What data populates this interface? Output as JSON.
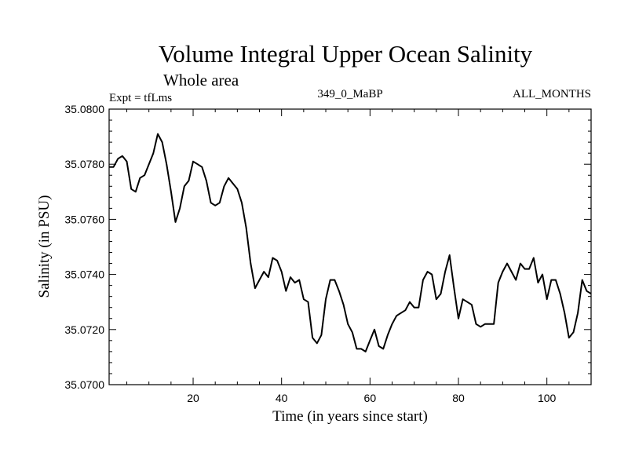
{
  "chart_data": {
    "type": "line",
    "title": "Volume Integral Upper Ocean Salinity",
    "subtitle": "Whole area",
    "experiment_label": "Expt = tfLms",
    "run_id": "349_0_MaBP",
    "months_label": "ALL_MONTHS",
    "xlabel": "Time (in years since start)",
    "ylabel": "Salinity (in PSU)",
    "xlim": [
      1,
      110
    ],
    "ylim": [
      35.07,
      35.08
    ],
    "xticks": [
      20,
      40,
      60,
      80,
      100
    ],
    "yticks": [
      "35.0700",
      "35.0720",
      "35.0740",
      "35.0760",
      "35.0780",
      "35.0800"
    ],
    "series": [
      {
        "name": "Salinity",
        "color": "#000000",
        "x": [
          1,
          2,
          3,
          4,
          5,
          6,
          7,
          8,
          9,
          10,
          11,
          12,
          13,
          14,
          15,
          16,
          17,
          18,
          19,
          20,
          21,
          22,
          23,
          24,
          25,
          26,
          27,
          28,
          29,
          30,
          31,
          32,
          33,
          34,
          35,
          36,
          37,
          38,
          39,
          40,
          41,
          42,
          43,
          44,
          45,
          46,
          47,
          48,
          49,
          50,
          51,
          52,
          53,
          54,
          55,
          56,
          57,
          58,
          59,
          60,
          61,
          62,
          63,
          64,
          65,
          66,
          67,
          68,
          69,
          70,
          71,
          72,
          73,
          74,
          75,
          76,
          77,
          78,
          79,
          80,
          81,
          82,
          83,
          84,
          85,
          86,
          87,
          88,
          89,
          90,
          91,
          92,
          93,
          94,
          95,
          96,
          97,
          98,
          99,
          100,
          101,
          102,
          103,
          104,
          105,
          106,
          107,
          108,
          109,
          110
        ],
        "values": [
          35.0779,
          35.0779,
          35.0782,
          35.0783,
          35.0781,
          35.0771,
          35.077,
          35.0775,
          35.0776,
          35.078,
          35.0784,
          35.0791,
          35.0788,
          35.078,
          35.077,
          35.0759,
          35.0764,
          35.0772,
          35.0774,
          35.0781,
          35.078,
          35.0779,
          35.0774,
          35.0766,
          35.0765,
          35.0766,
          35.0772,
          35.0775,
          35.0773,
          35.0771,
          35.0766,
          35.0757,
          35.0744,
          35.0735,
          35.0738,
          35.0741,
          35.0739,
          35.0746,
          35.0745,
          35.0741,
          35.0734,
          35.0739,
          35.0737,
          35.0738,
          35.0731,
          35.073,
          35.0717,
          35.0715,
          35.0718,
          35.0731,
          35.0738,
          35.0738,
          35.0734,
          35.0729,
          35.0722,
          35.0719,
          35.0713,
          35.0713,
          35.0712,
          35.0716,
          35.072,
          35.0714,
          35.0713,
          35.0718,
          35.0722,
          35.0725,
          35.0726,
          35.0727,
          35.073,
          35.0728,
          35.0728,
          35.0738,
          35.0741,
          35.074,
          35.0731,
          35.0733,
          35.0741,
          35.0747,
          35.0735,
          35.0724,
          35.0731,
          35.073,
          35.0729,
          35.0722,
          35.0721,
          35.0722,
          35.0722,
          35.0722,
          35.0737,
          35.0741,
          35.0744,
          35.0741,
          35.0738,
          35.0744,
          35.0742,
          35.0742,
          35.0746,
          35.0737,
          35.074,
          35.0731,
          35.0738,
          35.0738,
          35.0733,
          35.0726,
          35.0717,
          35.0719,
          35.0726,
          35.0738,
          35.0734,
          35.0733
        ]
      }
    ]
  }
}
